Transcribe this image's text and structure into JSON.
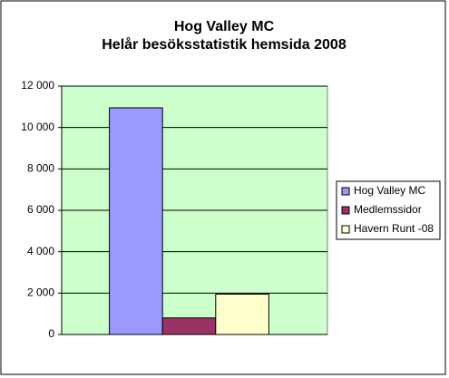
{
  "chart_data": {
    "type": "bar",
    "title": "Hog Valley MC",
    "subtitle": "Helår besöksstatistik hemsida 2008",
    "categories": [
      null
    ],
    "series": [
      {
        "name": "Hog Valley MC",
        "color": "#9999ff",
        "values": [
          10950
        ]
      },
      {
        "name": "Medlemssidor",
        "color": "#993366",
        "values": [
          800
        ]
      },
      {
        "name": "Havern Runt -08",
        "color": "#ffffcc",
        "values": [
          1950
        ]
      }
    ],
    "ylim": [
      0,
      12000
    ],
    "yticks": [
      0,
      {
        "value": 2000,
        "label": "2 000"
      },
      {
        "value": 4000,
        "label": "4 000"
      },
      {
        "value": 6000,
        "label": "6 000"
      },
      {
        "value": 8000,
        "label": "8 000"
      },
      {
        "value": 10000,
        "label": "10 000"
      },
      {
        "value": 12000,
        "label": "12 000"
      }
    ],
    "grid": true,
    "plot_background": "#ccffcc",
    "legend": "right"
  }
}
